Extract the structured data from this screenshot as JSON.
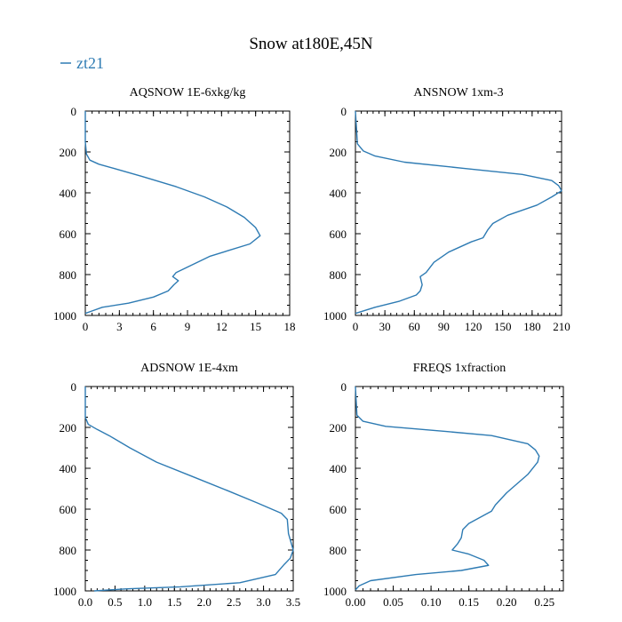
{
  "title": "Snow at180E,45N",
  "legend": {
    "label": "zt21",
    "color": "#2e7bb3"
  },
  "chart_data": [
    {
      "type": "line",
      "title": "AQSNOW  1E-6xkg/kg",
      "xlim": [
        0,
        18
      ],
      "ylim": [
        1000,
        0
      ],
      "x_ticks": [
        0,
        3,
        6,
        9,
        12,
        15,
        18
      ],
      "x_tick_labels": [
        "0",
        "3",
        "6",
        "9",
        "12",
        "15",
        "18"
      ],
      "y_ticks": [
        0,
        200,
        400,
        600,
        800,
        1000
      ],
      "y_tick_labels": [
        "0",
        "200",
        "400",
        "600",
        "800",
        "1000"
      ],
      "series": [
        {
          "name": "zt21",
          "x": [
            0,
            0,
            0.1,
            0.4,
            1.2,
            2.5,
            5,
            8,
            10.5,
            12.5,
            14,
            15,
            15.4,
            14.5,
            11,
            9.5,
            8,
            7.7,
            8.2,
            7.8,
            7.3,
            6,
            3.8,
            1.5,
            0.5,
            0
          ],
          "y": [
            0,
            150,
            210,
            240,
            260,
            280,
            320,
            370,
            420,
            470,
            520,
            570,
            610,
            650,
            710,
            750,
            790,
            810,
            830,
            850,
            880,
            910,
            940,
            960,
            980,
            990
          ]
        }
      ]
    },
    {
      "type": "line",
      "title": "ANSNOW  1xm-3",
      "xlim": [
        0,
        210
      ],
      "ylim": [
        1000,
        0
      ],
      "x_ticks": [
        0,
        30,
        60,
        90,
        120,
        150,
        180,
        210
      ],
      "x_tick_labels": [
        "0",
        "30",
        "60",
        "90",
        "120",
        "150",
        "180",
        "210"
      ],
      "y_ticks": [
        0,
        200,
        400,
        600,
        800,
        1000
      ],
      "y_tick_labels": [
        "0",
        "200",
        "400",
        "600",
        "800",
        "1000"
      ],
      "series": [
        {
          "name": "zt21",
          "x": [
            0,
            2,
            8,
            20,
            50,
            110,
            170,
            200,
            207,
            210,
            200,
            185,
            155,
            140,
            135,
            130,
            118,
            95,
            80,
            72,
            66,
            68,
            66,
            62,
            45,
            20,
            0
          ],
          "y": [
            0,
            160,
            195,
            220,
            250,
            280,
            310,
            340,
            365,
            390,
            420,
            460,
            510,
            550,
            580,
            620,
            640,
            690,
            740,
            790,
            810,
            850,
            880,
            900,
            930,
            960,
            990
          ]
        }
      ]
    },
    {
      "type": "line",
      "title": "ADSNOW  1E-4xm",
      "xlim": [
        0,
        3.5
      ],
      "ylim": [
        1000,
        0
      ],
      "x_ticks": [
        0,
        0.5,
        1.0,
        1.5,
        2.0,
        2.5,
        3.0,
        3.5
      ],
      "x_tick_labels": [
        "0.0",
        "0.5",
        "1.0",
        "1.5",
        "2.0",
        "2.5",
        "3.0",
        "3.5"
      ],
      "y_ticks": [
        0,
        200,
        400,
        600,
        800,
        1000
      ],
      "y_tick_labels": [
        "0",
        "200",
        "400",
        "600",
        "800",
        "1000"
      ],
      "series": [
        {
          "name": "zt21",
          "x": [
            0,
            0,
            0.05,
            0.2,
            0.4,
            0.75,
            1.2,
            1.8,
            2.4,
            2.9,
            3.3,
            3.4,
            3.42,
            3.5,
            3.45,
            3.35,
            3.2,
            2.6,
            1.6,
            0.7,
            0.25,
            0.15
          ],
          "y": [
            0,
            150,
            185,
            210,
            240,
            300,
            370,
            440,
            510,
            570,
            620,
            650,
            720,
            800,
            840,
            870,
            920,
            960,
            980,
            990,
            998,
            1000
          ]
        }
      ]
    },
    {
      "type": "line",
      "title": "FREQS  1xfraction",
      "xlim": [
        0,
        0.275
      ],
      "ylim": [
        1000,
        0
      ],
      "x_ticks": [
        0,
        0.05,
        0.1,
        0.15,
        0.2,
        0.25
      ],
      "x_tick_labels": [
        "0.00",
        "0.05",
        "0.10",
        "0.15",
        "0.20",
        "0.25"
      ],
      "y_ticks": [
        0,
        200,
        400,
        600,
        800,
        1000
      ],
      "y_tick_labels": [
        "0",
        "200",
        "400",
        "600",
        "800",
        "1000"
      ],
      "series": [
        {
          "name": "zt21",
          "x": [
            0,
            0.002,
            0.01,
            0.04,
            0.12,
            0.18,
            0.228,
            0.238,
            0.243,
            0.241,
            0.228,
            0.2,
            0.185,
            0.18,
            0.15,
            0.142,
            0.14,
            0.135,
            0.128,
            0.15,
            0.17,
            0.176,
            0.14,
            0.08,
            0.02,
            0.005,
            0
          ],
          "y": [
            0,
            140,
            170,
            195,
            220,
            240,
            280,
            310,
            340,
            370,
            430,
            520,
            580,
            610,
            670,
            700,
            740,
            770,
            800,
            820,
            850,
            875,
            900,
            920,
            950,
            975,
            995
          ]
        }
      ]
    }
  ]
}
